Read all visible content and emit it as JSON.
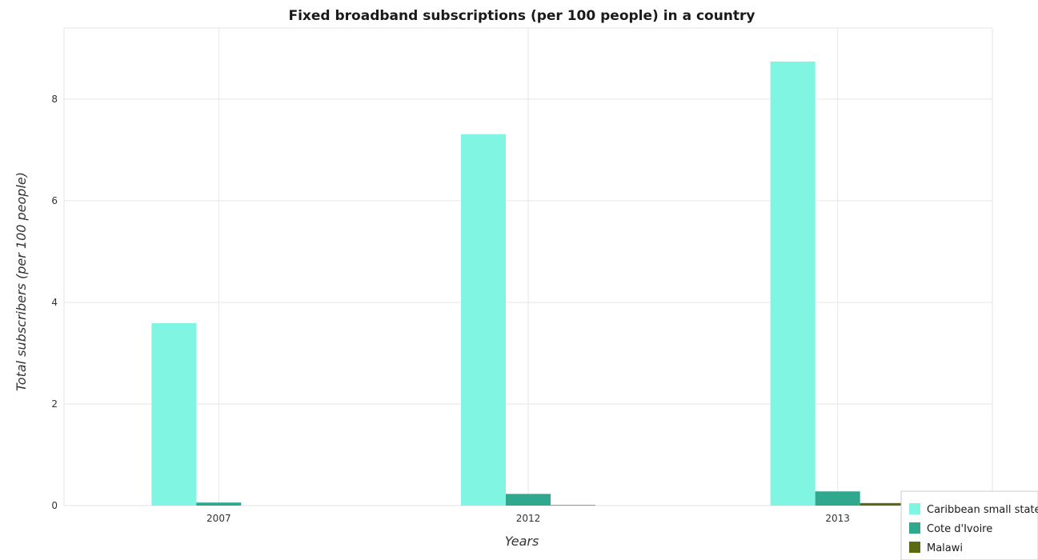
{
  "chart_data": {
    "type": "bar",
    "title": "Fixed broadband subscriptions (per 100 people) in a country",
    "xlabel": "Years",
    "ylabel": "Total subscribers (per 100 people)",
    "categories": [
      "2007",
      "2012",
      "2013"
    ],
    "ylim": [
      0,
      9.4
    ],
    "yticks": [
      0,
      2,
      4,
      6,
      8
    ],
    "ytick_labels": [
      "0",
      "2",
      "4",
      "6",
      "8"
    ],
    "grid": true,
    "legend_position": "bottom-right",
    "series": [
      {
        "name": "Caribbean small states",
        "color": "#7ff5e2",
        "values": [
          3.59,
          7.31,
          8.74
        ]
      },
      {
        "name": "Cote d'Ivoire",
        "color": "#2fa88d",
        "values": [
          0.06,
          0.23,
          0.28
        ]
      },
      {
        "name": "Malawi",
        "color": "#5a6b12",
        "values": [
          0.0,
          0.01,
          0.05
        ]
      }
    ]
  }
}
